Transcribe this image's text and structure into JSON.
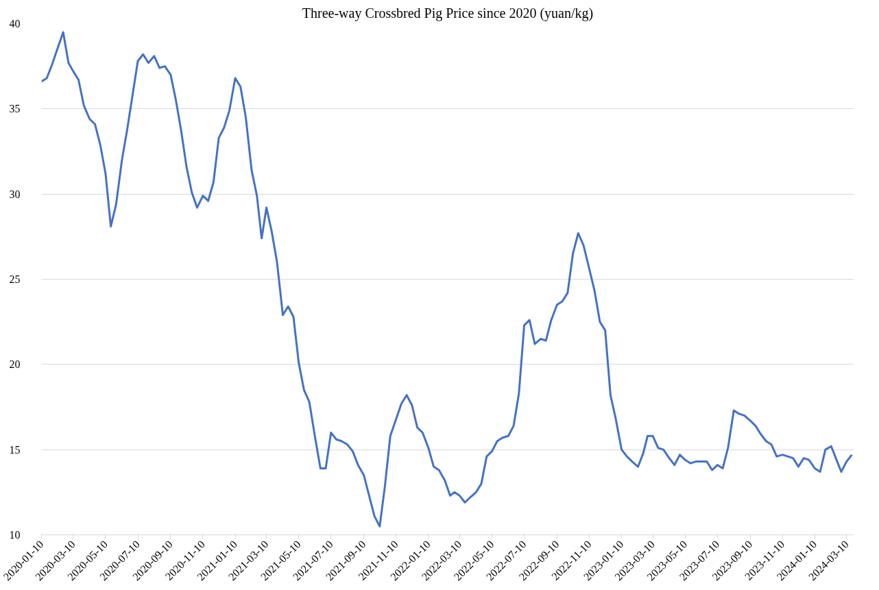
{
  "chart_data": {
    "type": "line",
    "title": "Three-way Crossbred Pig Price since 2020 (yuan/kg)",
    "x": [
      "2020-01-10",
      "2020-01-20",
      "2020-01-30",
      "2020-02-10",
      "2020-02-20",
      "2020-03-01",
      "2020-03-10",
      "2020-03-20",
      "2020-03-30",
      "2020-04-10",
      "2020-04-20",
      "2020-04-30",
      "2020-05-10",
      "2020-05-20",
      "2020-05-30",
      "2020-06-10",
      "2020-06-20",
      "2020-06-30",
      "2020-07-10",
      "2020-07-20",
      "2020-07-30",
      "2020-08-10",
      "2020-08-20",
      "2020-08-30",
      "2020-09-10",
      "2020-09-20",
      "2020-09-30",
      "2020-10-10",
      "2020-10-20",
      "2020-10-30",
      "2020-11-10",
      "2020-11-20",
      "2020-11-30",
      "2020-12-10",
      "2020-12-20",
      "2020-12-30",
      "2021-01-10",
      "2021-01-20",
      "2021-01-30",
      "2021-02-10",
      "2021-02-20",
      "2021-03-01",
      "2021-03-10",
      "2021-03-20",
      "2021-03-30",
      "2021-04-10",
      "2021-04-20",
      "2021-04-30",
      "2021-05-10",
      "2021-05-20",
      "2021-05-30",
      "2021-06-10",
      "2021-06-20",
      "2021-06-30",
      "2021-07-10",
      "2021-07-20",
      "2021-07-30",
      "2021-08-10",
      "2021-08-20",
      "2021-08-30",
      "2021-09-10",
      "2021-09-20",
      "2021-09-30",
      "2021-10-10",
      "2021-10-20",
      "2021-10-30",
      "2021-11-10",
      "2021-11-20",
      "2021-11-30",
      "2021-12-10",
      "2021-12-20",
      "2021-12-30",
      "2022-01-10",
      "2022-01-20",
      "2022-01-30",
      "2022-02-10",
      "2022-02-20",
      "2022-02-28",
      "2022-03-10",
      "2022-03-20",
      "2022-03-30",
      "2022-04-10",
      "2022-04-20",
      "2022-04-30",
      "2022-05-10",
      "2022-05-20",
      "2022-05-30",
      "2022-06-10",
      "2022-06-20",
      "2022-06-30",
      "2022-07-10",
      "2022-07-20",
      "2022-07-30",
      "2022-08-10",
      "2022-08-20",
      "2022-08-30",
      "2022-09-10",
      "2022-09-20",
      "2022-09-30",
      "2022-10-10",
      "2022-10-20",
      "2022-10-30",
      "2022-11-10",
      "2022-11-20",
      "2022-11-30",
      "2022-12-10",
      "2022-12-20",
      "2022-12-30",
      "2023-01-10",
      "2023-01-20",
      "2023-01-30",
      "2023-02-10",
      "2023-02-20",
      "2023-02-28",
      "2023-03-10",
      "2023-03-20",
      "2023-03-30",
      "2023-04-10",
      "2023-04-20",
      "2023-04-30",
      "2023-05-10",
      "2023-05-20",
      "2023-05-30",
      "2023-06-10",
      "2023-06-20",
      "2023-06-30",
      "2023-07-10",
      "2023-07-20",
      "2023-07-30",
      "2023-08-10",
      "2023-08-20",
      "2023-08-30",
      "2023-09-10",
      "2023-09-20",
      "2023-09-30",
      "2023-10-10",
      "2023-10-20",
      "2023-10-30",
      "2023-11-10",
      "2023-11-20",
      "2023-11-30",
      "2023-12-10",
      "2023-12-20",
      "2023-12-30",
      "2024-01-10",
      "2024-01-20",
      "2024-01-30",
      "2024-02-10",
      "2024-02-20",
      "2024-02-29",
      "2024-03-10",
      "2024-03-20"
    ],
    "series": [
      {
        "color": "#4472c4",
        "values": [
          36.6,
          36.8,
          37.6,
          38.6,
          39.5,
          37.7,
          37.2,
          36.7,
          35.2,
          34.4,
          34.1,
          32.9,
          31.2,
          28.1,
          29.4,
          32.0,
          33.8,
          35.8,
          37.8,
          38.2,
          37.7,
          38.1,
          37.4,
          37.5,
          37.0,
          35.5,
          33.7,
          31.6,
          30.1,
          29.2,
          29.9,
          29.6,
          30.7,
          33.3,
          33.9,
          34.9,
          36.8,
          36.3,
          34.5,
          31.4,
          29.9,
          27.4,
          29.2,
          27.8,
          26.0,
          22.9,
          23.4,
          22.8,
          20.1,
          18.5,
          17.8,
          15.7,
          13.9,
          13.9,
          16.0,
          15.6,
          15.5,
          15.3,
          14.9,
          14.1,
          13.5,
          12.3,
          11.1,
          10.5,
          12.9,
          15.8,
          16.8,
          17.7,
          18.2,
          17.6,
          16.3,
          16.0,
          15.1,
          14.0,
          13.8,
          13.2,
          12.3,
          12.5,
          12.3,
          11.9,
          12.2,
          12.5,
          13.0,
          14.6,
          14.9,
          15.5,
          15.7,
          15.8,
          16.4,
          18.3,
          22.3,
          22.6,
          21.2,
          21.5,
          21.4,
          22.6,
          23.5,
          23.7,
          24.2,
          26.5,
          27.7,
          27.0,
          25.6,
          24.3,
          22.5,
          22.0,
          18.2,
          16.8,
          15.0,
          14.6,
          14.3,
          14.0,
          14.8,
          15.8,
          15.8,
          15.1,
          15.0,
          14.5,
          14.1,
          14.7,
          14.4,
          14.2,
          14.3,
          14.3,
          14.3,
          13.8,
          14.1,
          13.9,
          15.1,
          17.3,
          17.1,
          17.0,
          16.7,
          16.4,
          15.9,
          15.5,
          15.3,
          14.6,
          14.7,
          14.6,
          14.5,
          14.0,
          14.5,
          14.4,
          13.9,
          13.7,
          15.0,
          15.2,
          14.4,
          13.7,
          14.3,
          14.7
        ]
      }
    ],
    "xlim": [
      "2020-01-10",
      "2024-03-24"
    ],
    "xticks": [
      "2020-01-10",
      "2020-03-10",
      "2020-05-10",
      "2020-07-10",
      "2020-09-10",
      "2020-11-10",
      "2021-01-10",
      "2021-03-10",
      "2021-05-10",
      "2021-07-10",
      "2021-09-10",
      "2021-11-10",
      "2022-01-10",
      "2022-03-10",
      "2022-05-10",
      "2022-07-10",
      "2022-09-10",
      "2022-11-10",
      "2023-01-10",
      "2023-03-10",
      "2023-05-10",
      "2023-07-10",
      "2023-09-10",
      "2023-11-10",
      "2024-01-10",
      "2024-03-10"
    ],
    "ylim": [
      10,
      40
    ],
    "yticks": [
      10,
      15,
      20,
      25,
      30,
      35,
      40
    ],
    "grid": "y",
    "marker": "none",
    "line_style": "solid"
  }
}
